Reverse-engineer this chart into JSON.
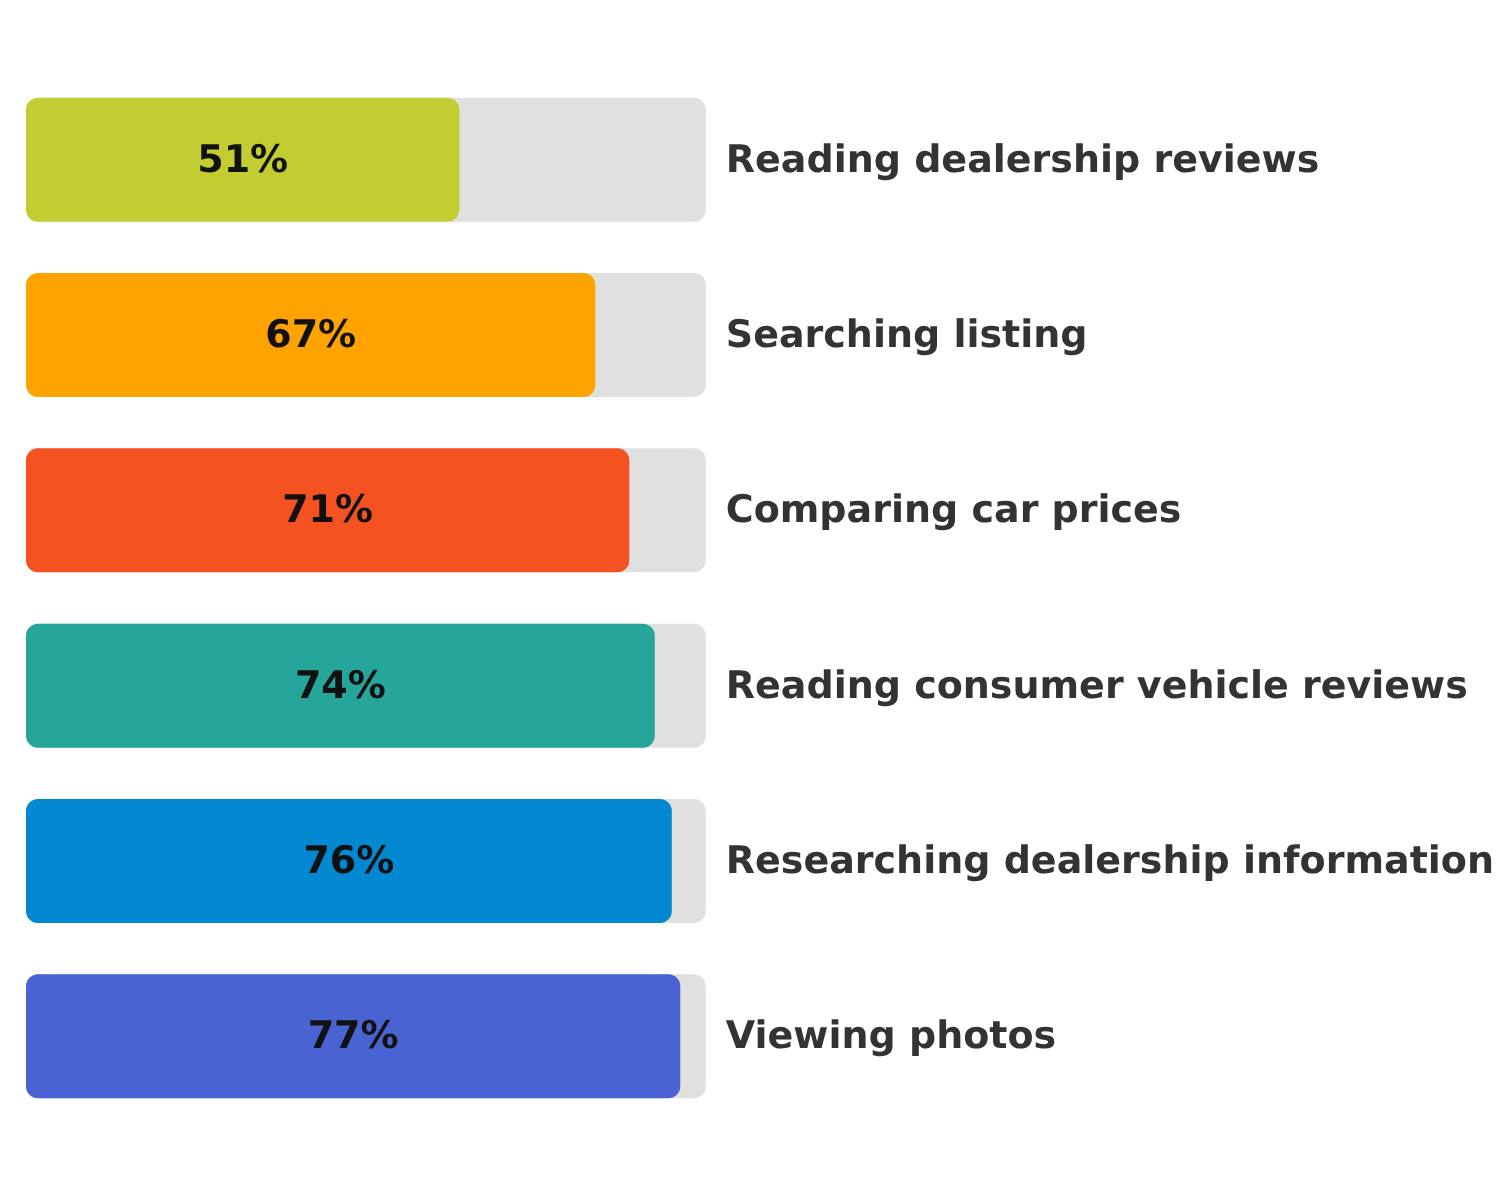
{
  "chart_data": {
    "type": "bar",
    "orientation": "horizontal",
    "categories": [
      "Reading dealership reviews",
      "Searching listing",
      "Comparing car prices",
      "Reading consumer vehicle reviews",
      "Researching dealership information",
      "Viewing photos"
    ],
    "values": [
      51,
      67,
      71,
      74,
      76,
      77
    ],
    "value_labels": [
      "51%",
      "67%",
      "71%",
      "74%",
      "76%",
      "77%"
    ],
    "colors": [
      "#c3cd32",
      "#ffa300",
      "#f55222",
      "#26a69a",
      "#0288d1",
      "#4a63d3"
    ]
  }
}
